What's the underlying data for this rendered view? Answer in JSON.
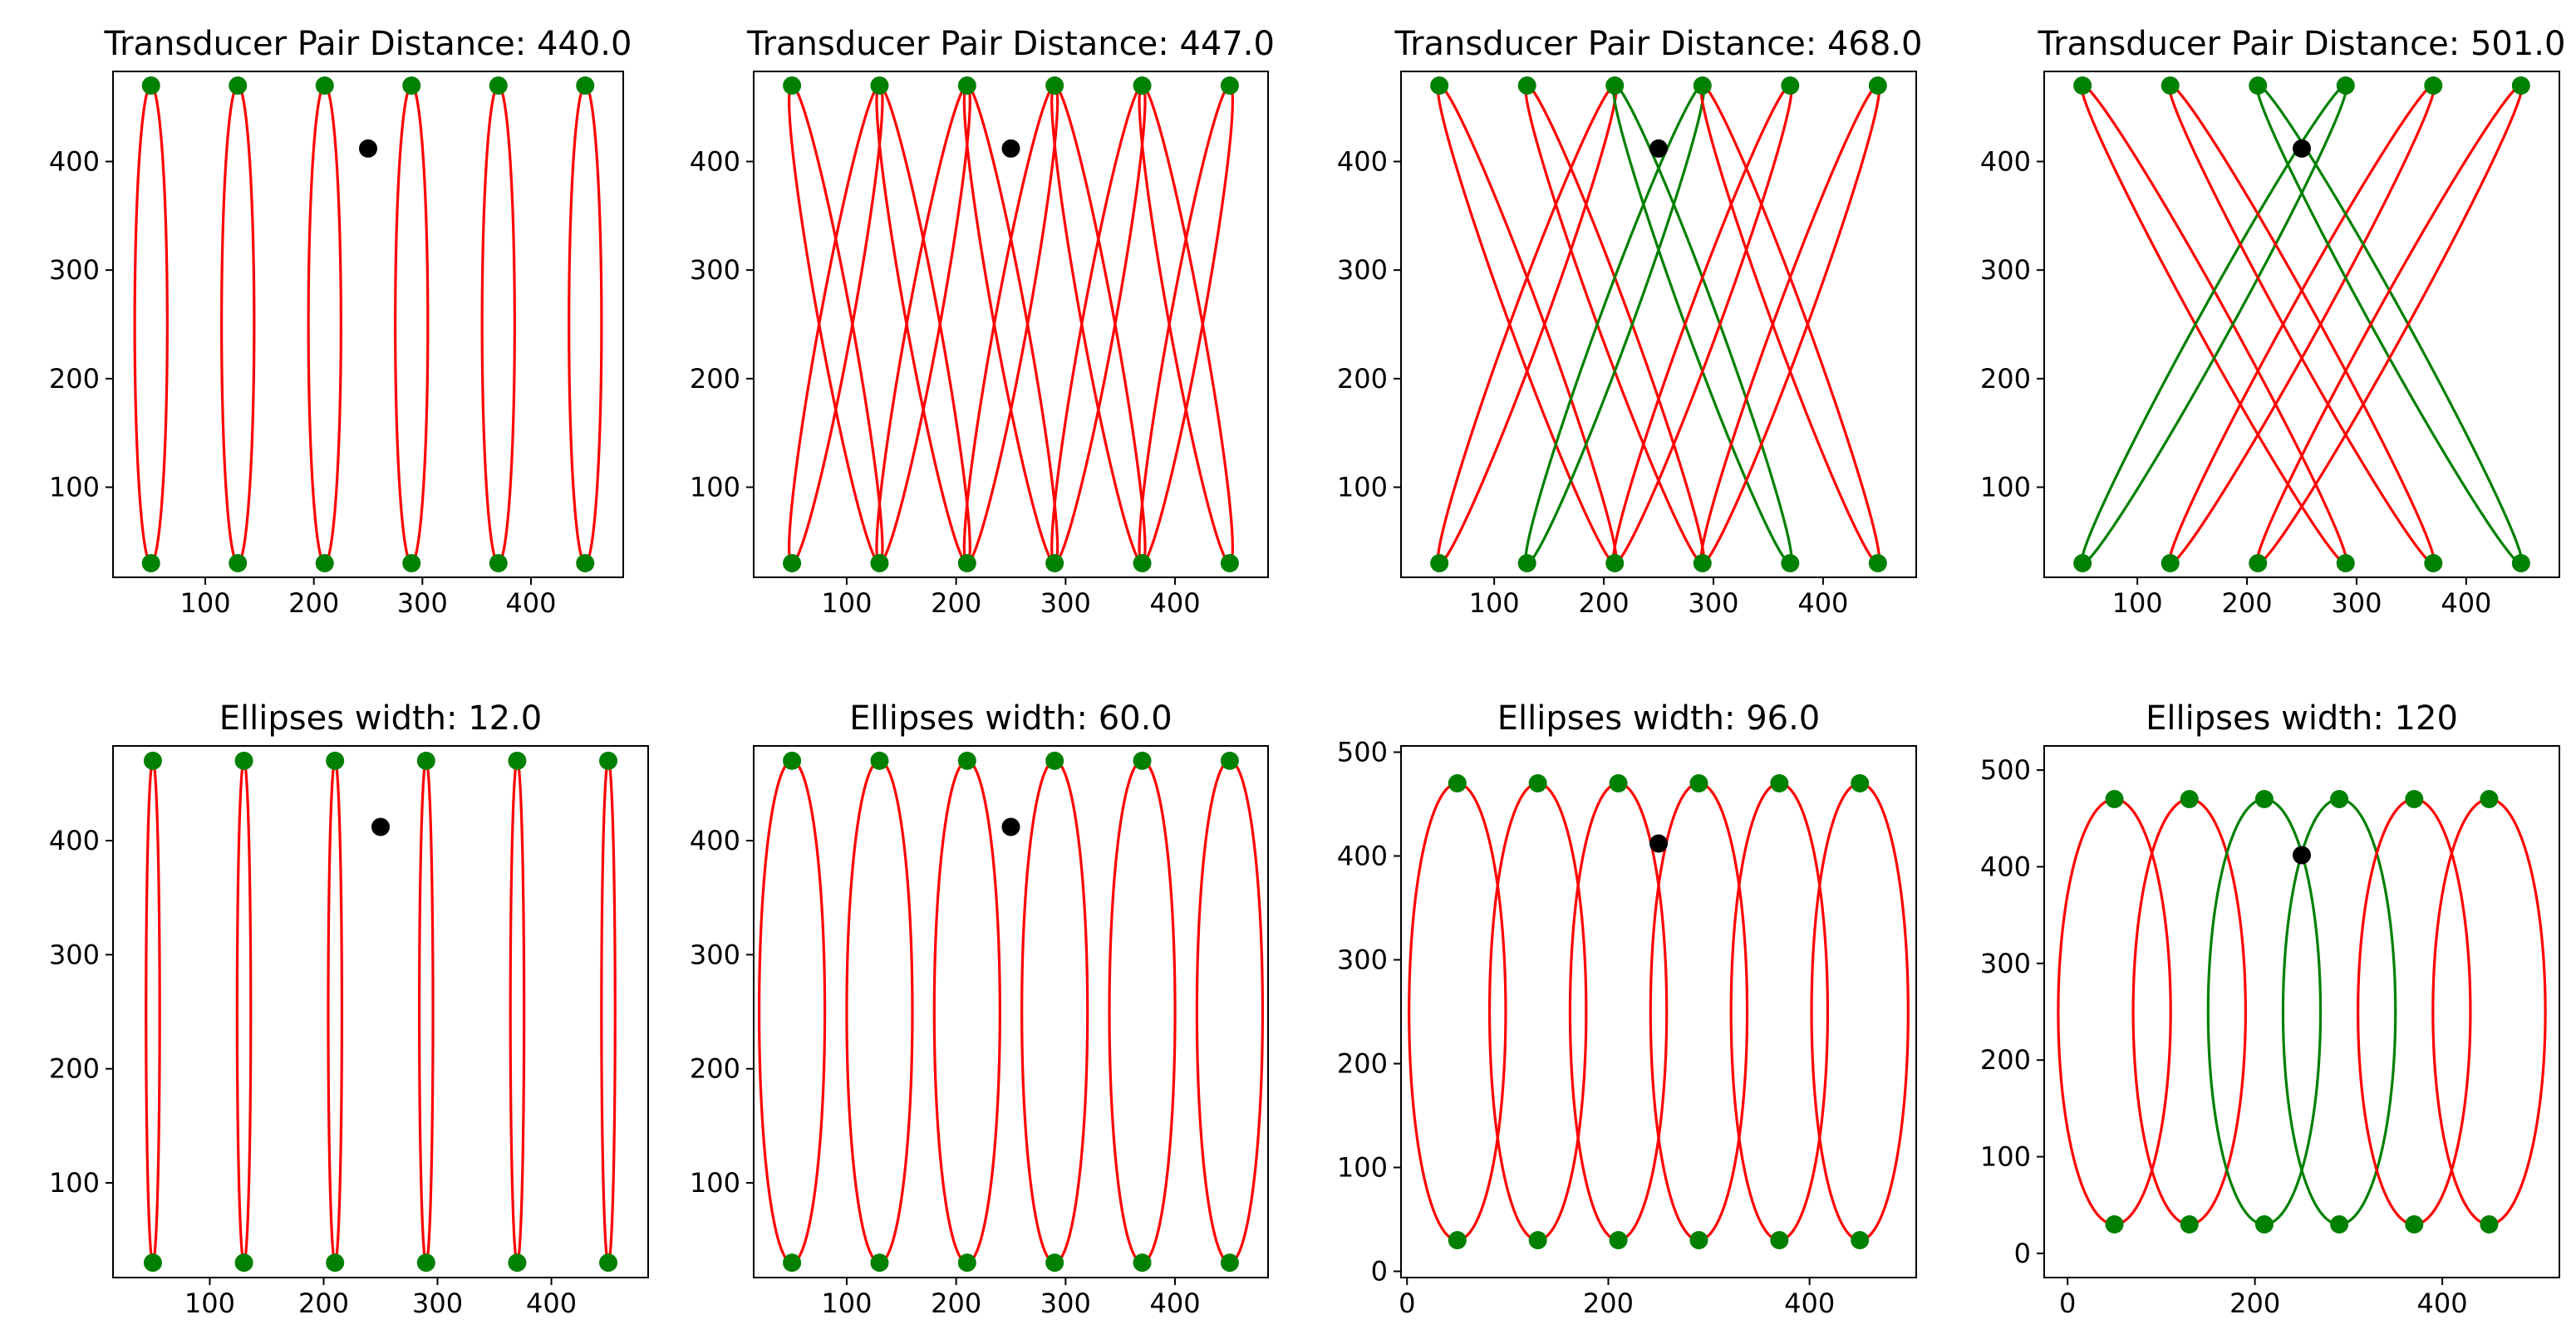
{
  "figure": {
    "background": "#ffffff"
  },
  "colors": {
    "active": "#ff0000",
    "selected": "#008000",
    "transducer": "#008000",
    "target": "#000000"
  },
  "chart_data": [
    {
      "type": "scatter",
      "title": "Transducer Pair Distance: 440.0",
      "xlim": [
        15,
        485
      ],
      "ylim": [
        17,
        483
      ],
      "xticks": [
        100,
        200,
        300,
        400
      ],
      "yticks": [
        100,
        200,
        300,
        400
      ],
      "transducers_top": [
        [
          50,
          470
        ],
        [
          130,
          470
        ],
        [
          210,
          470
        ],
        [
          290,
          470
        ],
        [
          370,
          470
        ],
        [
          450,
          470
        ]
      ],
      "transducers_bottom": [
        [
          50,
          30
        ],
        [
          130,
          30
        ],
        [
          210,
          30
        ],
        [
          290,
          30
        ],
        [
          370,
          30
        ],
        [
          450,
          30
        ]
      ],
      "target": [
        250,
        412
      ],
      "ellipse_width": 30,
      "pairs": [
        {
          "top": 50,
          "bottom": 50,
          "color": "red"
        },
        {
          "top": 130,
          "bottom": 130,
          "color": "red"
        },
        {
          "top": 210,
          "bottom": 210,
          "color": "red"
        },
        {
          "top": 290,
          "bottom": 290,
          "color": "red"
        },
        {
          "top": 370,
          "bottom": 370,
          "color": "red"
        },
        {
          "top": 450,
          "bottom": 450,
          "color": "red"
        }
      ]
    },
    {
      "type": "scatter",
      "title": "Transducer Pair Distance: 447.0",
      "xlim": [
        15,
        485
      ],
      "ylim": [
        17,
        483
      ],
      "xticks": [
        100,
        200,
        300,
        400
      ],
      "yticks": [
        100,
        200,
        300,
        400
      ],
      "transducers_top": [
        [
          50,
          470
        ],
        [
          130,
          470
        ],
        [
          210,
          470
        ],
        [
          290,
          470
        ],
        [
          370,
          470
        ],
        [
          450,
          470
        ]
      ],
      "transducers_bottom": [
        [
          50,
          30
        ],
        [
          130,
          30
        ],
        [
          210,
          30
        ],
        [
          290,
          30
        ],
        [
          370,
          30
        ],
        [
          450,
          30
        ]
      ],
      "target": [
        250,
        412
      ],
      "ellipse_width": 30,
      "pairs": [
        {
          "top": 50,
          "bottom": 130,
          "color": "red"
        },
        {
          "top": 130,
          "bottom": 50,
          "color": "red"
        },
        {
          "top": 130,
          "bottom": 210,
          "color": "red"
        },
        {
          "top": 210,
          "bottom": 130,
          "color": "red"
        },
        {
          "top": 210,
          "bottom": 290,
          "color": "red"
        },
        {
          "top": 290,
          "bottom": 210,
          "color": "red"
        },
        {
          "top": 290,
          "bottom": 370,
          "color": "red"
        },
        {
          "top": 370,
          "bottom": 290,
          "color": "red"
        },
        {
          "top": 370,
          "bottom": 450,
          "color": "red"
        },
        {
          "top": 450,
          "bottom": 370,
          "color": "red"
        }
      ]
    },
    {
      "type": "scatter",
      "title": "Transducer Pair Distance: 468.0",
      "xlim": [
        15,
        485
      ],
      "ylim": [
        17,
        483
      ],
      "xticks": [
        100,
        200,
        300,
        400
      ],
      "yticks": [
        100,
        200,
        300,
        400
      ],
      "transducers_top": [
        [
          50,
          470
        ],
        [
          130,
          470
        ],
        [
          210,
          470
        ],
        [
          290,
          470
        ],
        [
          370,
          470
        ],
        [
          450,
          470
        ]
      ],
      "transducers_bottom": [
        [
          50,
          30
        ],
        [
          130,
          30
        ],
        [
          210,
          30
        ],
        [
          290,
          30
        ],
        [
          370,
          30
        ],
        [
          450,
          30
        ]
      ],
      "target": [
        250,
        412
      ],
      "ellipse_width": 30,
      "pairs": [
        {
          "top": 50,
          "bottom": 210,
          "color": "red"
        },
        {
          "top": 210,
          "bottom": 50,
          "color": "red"
        },
        {
          "top": 130,
          "bottom": 290,
          "color": "red"
        },
        {
          "top": 290,
          "bottom": 130,
          "color": "green"
        },
        {
          "top": 210,
          "bottom": 370,
          "color": "green"
        },
        {
          "top": 370,
          "bottom": 210,
          "color": "red"
        },
        {
          "top": 290,
          "bottom": 450,
          "color": "red"
        },
        {
          "top": 450,
          "bottom": 290,
          "color": "red"
        }
      ]
    },
    {
      "type": "scatter",
      "title": "Transducer Pair Distance: 501.0",
      "xlim": [
        15,
        485
      ],
      "ylim": [
        17,
        483
      ],
      "xticks": [
        100,
        200,
        300,
        400
      ],
      "yticks": [
        100,
        200,
        300,
        400
      ],
      "transducers_top": [
        [
          50,
          470
        ],
        [
          130,
          470
        ],
        [
          210,
          470
        ],
        [
          290,
          470
        ],
        [
          370,
          470
        ],
        [
          450,
          470
        ]
      ],
      "transducers_bottom": [
        [
          50,
          30
        ],
        [
          130,
          30
        ],
        [
          210,
          30
        ],
        [
          290,
          30
        ],
        [
          370,
          30
        ],
        [
          450,
          30
        ]
      ],
      "target": [
        250,
        412
      ],
      "ellipse_width": 30,
      "pairs": [
        {
          "top": 50,
          "bottom": 290,
          "color": "red"
        },
        {
          "top": 290,
          "bottom": 50,
          "color": "green"
        },
        {
          "top": 130,
          "bottom": 370,
          "color": "red"
        },
        {
          "top": 370,
          "bottom": 130,
          "color": "red"
        },
        {
          "top": 210,
          "bottom": 450,
          "color": "green"
        },
        {
          "top": 450,
          "bottom": 210,
          "color": "red"
        }
      ]
    },
    {
      "type": "scatter",
      "title": "Ellipses width: 12.0",
      "xlim": [
        15,
        485
      ],
      "ylim": [
        17,
        483
      ],
      "xticks": [
        100,
        200,
        300,
        400
      ],
      "yticks": [
        100,
        200,
        300,
        400
      ],
      "transducers_top": [
        [
          50,
          470
        ],
        [
          130,
          470
        ],
        [
          210,
          470
        ],
        [
          290,
          470
        ],
        [
          370,
          470
        ],
        [
          450,
          470
        ]
      ],
      "transducers_bottom": [
        [
          50,
          30
        ],
        [
          130,
          30
        ],
        [
          210,
          30
        ],
        [
          290,
          30
        ],
        [
          370,
          30
        ],
        [
          450,
          30
        ]
      ],
      "target": [
        250,
        412
      ],
      "ellipse_width": 12,
      "pairs": [
        {
          "top": 50,
          "bottom": 50,
          "color": "red"
        },
        {
          "top": 130,
          "bottom": 130,
          "color": "red"
        },
        {
          "top": 210,
          "bottom": 210,
          "color": "red"
        },
        {
          "top": 290,
          "bottom": 290,
          "color": "red"
        },
        {
          "top": 370,
          "bottom": 370,
          "color": "red"
        },
        {
          "top": 450,
          "bottom": 450,
          "color": "red"
        }
      ]
    },
    {
      "type": "scatter",
      "title": "Ellipses width: 60.0",
      "xlim": [
        15,
        485
      ],
      "ylim": [
        17,
        483
      ],
      "xticks": [
        100,
        200,
        300,
        400
      ],
      "yticks": [
        100,
        200,
        300,
        400
      ],
      "transducers_top": [
        [
          50,
          470
        ],
        [
          130,
          470
        ],
        [
          210,
          470
        ],
        [
          290,
          470
        ],
        [
          370,
          470
        ],
        [
          450,
          470
        ]
      ],
      "transducers_bottom": [
        [
          50,
          30
        ],
        [
          130,
          30
        ],
        [
          210,
          30
        ],
        [
          290,
          30
        ],
        [
          370,
          30
        ],
        [
          450,
          30
        ]
      ],
      "target": [
        250,
        412
      ],
      "ellipse_width": 60,
      "pairs": [
        {
          "top": 50,
          "bottom": 50,
          "color": "red"
        },
        {
          "top": 130,
          "bottom": 130,
          "color": "red"
        },
        {
          "top": 210,
          "bottom": 210,
          "color": "red"
        },
        {
          "top": 290,
          "bottom": 290,
          "color": "red"
        },
        {
          "top": 370,
          "bottom": 370,
          "color": "red"
        },
        {
          "top": 450,
          "bottom": 450,
          "color": "red"
        }
      ]
    },
    {
      "type": "scatter",
      "title": "Ellipses width: 96.0",
      "xlim": [
        -6,
        506
      ],
      "ylim": [
        -6,
        506
      ],
      "xticks": [
        0,
        200,
        400
      ],
      "yticks": [
        0,
        100,
        200,
        300,
        400,
        500
      ],
      "transducers_top": [
        [
          50,
          470
        ],
        [
          130,
          470
        ],
        [
          210,
          470
        ],
        [
          290,
          470
        ],
        [
          370,
          470
        ],
        [
          450,
          470
        ]
      ],
      "transducers_bottom": [
        [
          50,
          30
        ],
        [
          130,
          30
        ],
        [
          210,
          30
        ],
        [
          290,
          30
        ],
        [
          370,
          30
        ],
        [
          450,
          30
        ]
      ],
      "target": [
        250,
        412
      ],
      "ellipse_width": 96,
      "pairs": [
        {
          "top": 50,
          "bottom": 50,
          "color": "red"
        },
        {
          "top": 130,
          "bottom": 130,
          "color": "red"
        },
        {
          "top": 210,
          "bottom": 210,
          "color": "red"
        },
        {
          "top": 290,
          "bottom": 290,
          "color": "red"
        },
        {
          "top": 370,
          "bottom": 370,
          "color": "red"
        },
        {
          "top": 450,
          "bottom": 450,
          "color": "red"
        }
      ]
    },
    {
      "type": "scatter",
      "title": "Ellipses width: 120",
      "xlim": [
        -25,
        525
      ],
      "ylim": [
        -25,
        525
      ],
      "xticks": [
        0,
        200,
        400
      ],
      "yticks": [
        0,
        100,
        200,
        300,
        400,
        500
      ],
      "transducers_top": [
        [
          50,
          470
        ],
        [
          130,
          470
        ],
        [
          210,
          470
        ],
        [
          290,
          470
        ],
        [
          370,
          470
        ],
        [
          450,
          470
        ]
      ],
      "transducers_bottom": [
        [
          50,
          30
        ],
        [
          130,
          30
        ],
        [
          210,
          30
        ],
        [
          290,
          30
        ],
        [
          370,
          30
        ],
        [
          450,
          30
        ]
      ],
      "target": [
        250,
        412
      ],
      "ellipse_width": 120,
      "pairs": [
        {
          "top": 50,
          "bottom": 50,
          "color": "red"
        },
        {
          "top": 130,
          "bottom": 130,
          "color": "red"
        },
        {
          "top": 210,
          "bottom": 210,
          "color": "green"
        },
        {
          "top": 290,
          "bottom": 290,
          "color": "green"
        },
        {
          "top": 370,
          "bottom": 370,
          "color": "red"
        },
        {
          "top": 450,
          "bottom": 450,
          "color": "red"
        }
      ]
    }
  ]
}
